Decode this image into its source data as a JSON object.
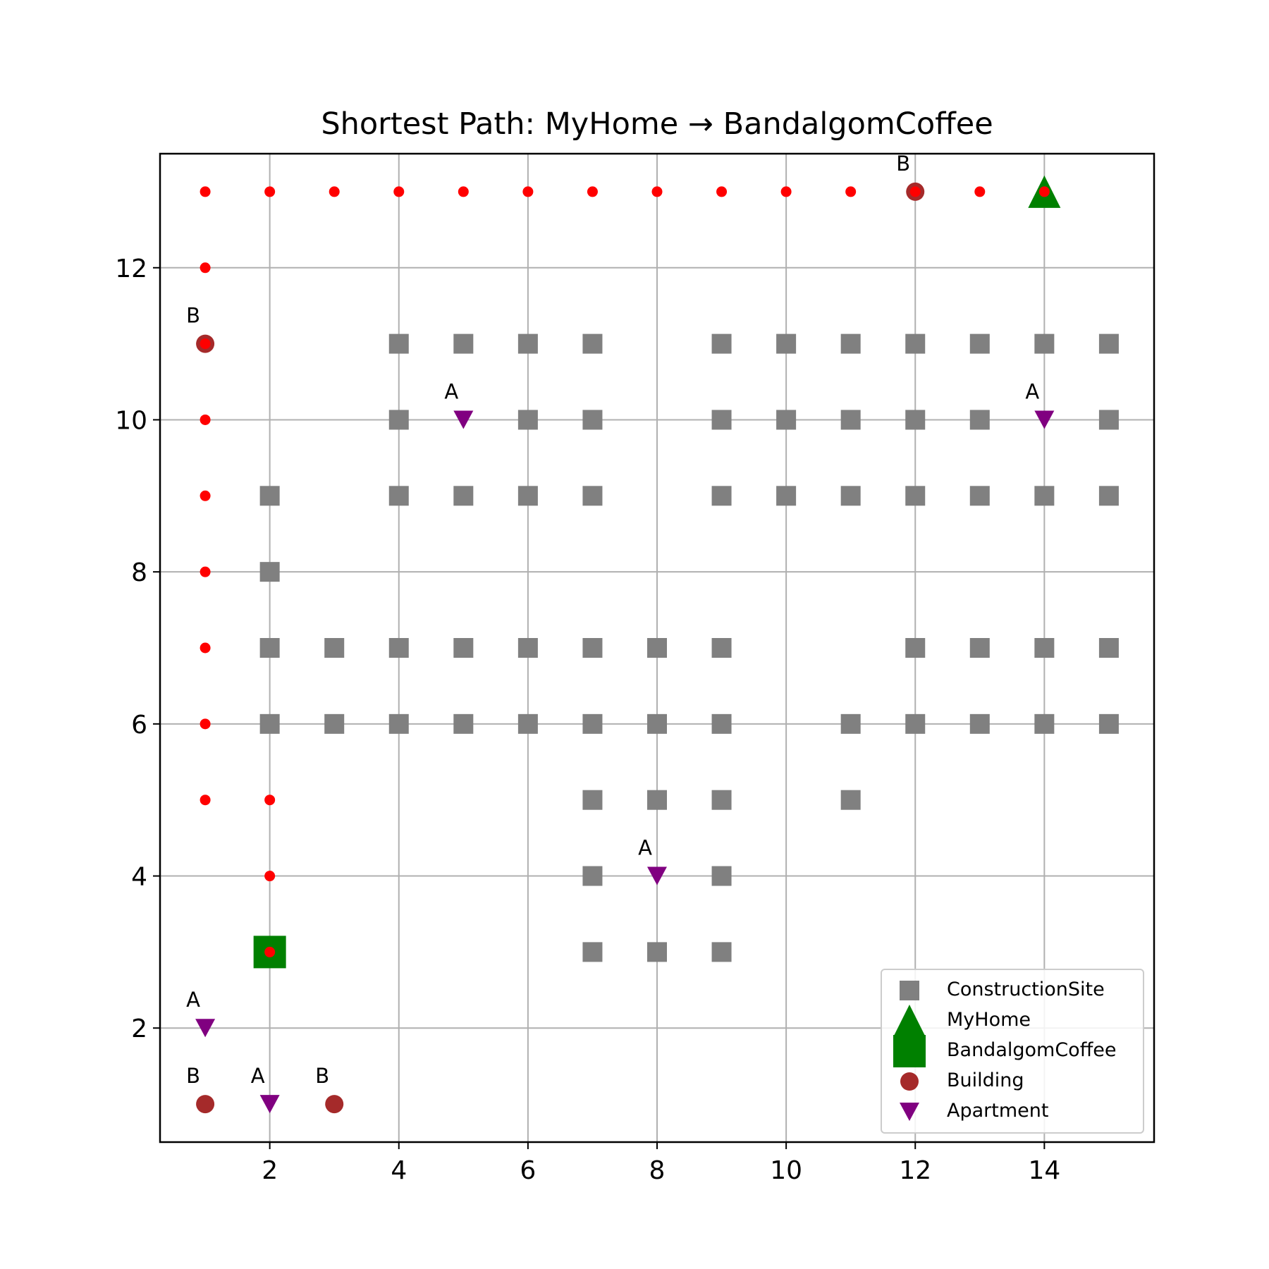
{
  "chart_data": {
    "type": "scatter",
    "title": "Shortest Path: MyHome → BandalgomCoffee",
    "xlabel": "",
    "ylabel": "",
    "xlim": [
      0.3,
      15.7
    ],
    "ylim": [
      0.5,
      13.5
    ],
    "xticks": [
      2,
      4,
      6,
      8,
      10,
      12,
      14
    ],
    "yticks": [
      2,
      4,
      6,
      8,
      10,
      12
    ],
    "grid": true,
    "legend_position": "lower-right",
    "series": [
      {
        "name": "ConstructionSite",
        "marker": "square",
        "color": "#808080",
        "points": [
          [
            4,
            11
          ],
          [
            5,
            11
          ],
          [
            6,
            11
          ],
          [
            7,
            11
          ],
          [
            9,
            11
          ],
          [
            10,
            11
          ],
          [
            11,
            11
          ],
          [
            12,
            11
          ],
          [
            13,
            11
          ],
          [
            14,
            11
          ],
          [
            15,
            11
          ],
          [
            4,
            10
          ],
          [
            6,
            10
          ],
          [
            7,
            10
          ],
          [
            9,
            10
          ],
          [
            10,
            10
          ],
          [
            11,
            10
          ],
          [
            12,
            10
          ],
          [
            13,
            10
          ],
          [
            15,
            10
          ],
          [
            2,
            9
          ],
          [
            4,
            9
          ],
          [
            5,
            9
          ],
          [
            6,
            9
          ],
          [
            7,
            9
          ],
          [
            9,
            9
          ],
          [
            10,
            9
          ],
          [
            11,
            9
          ],
          [
            12,
            9
          ],
          [
            13,
            9
          ],
          [
            14,
            9
          ],
          [
            15,
            9
          ],
          [
            2,
            8
          ],
          [
            2,
            7
          ],
          [
            3,
            7
          ],
          [
            4,
            7
          ],
          [
            5,
            7
          ],
          [
            6,
            7
          ],
          [
            7,
            7
          ],
          [
            8,
            7
          ],
          [
            9,
            7
          ],
          [
            12,
            7
          ],
          [
            13,
            7
          ],
          [
            14,
            7
          ],
          [
            15,
            7
          ],
          [
            2,
            6
          ],
          [
            3,
            6
          ],
          [
            4,
            6
          ],
          [
            5,
            6
          ],
          [
            6,
            6
          ],
          [
            7,
            6
          ],
          [
            8,
            6
          ],
          [
            9,
            6
          ],
          [
            11,
            6
          ],
          [
            12,
            6
          ],
          [
            13,
            6
          ],
          [
            14,
            6
          ],
          [
            15,
            6
          ],
          [
            7,
            5
          ],
          [
            8,
            5
          ],
          [
            9,
            5
          ],
          [
            11,
            5
          ],
          [
            7,
            4
          ],
          [
            9,
            4
          ],
          [
            7,
            3
          ],
          [
            8,
            3
          ],
          [
            9,
            3
          ]
        ]
      },
      {
        "name": "MyHome",
        "marker": "triangle-up",
        "color": "#008000",
        "points": [
          [
            14,
            13
          ]
        ]
      },
      {
        "name": "BandalgomCoffee",
        "marker": "square-large",
        "color": "#008000",
        "points": [
          [
            2,
            3
          ]
        ]
      },
      {
        "name": "Building",
        "marker": "circle",
        "color": "#a52a2a",
        "label": "B",
        "points": [
          [
            12,
            13
          ],
          [
            1,
            11
          ],
          [
            1,
            1
          ],
          [
            3,
            1
          ]
        ]
      },
      {
        "name": "Apartment",
        "marker": "triangle-down",
        "color": "#800080",
        "label": "A",
        "points": [
          [
            5,
            10
          ],
          [
            14,
            10
          ],
          [
            8,
            4
          ],
          [
            1,
            2
          ],
          [
            2,
            1
          ]
        ]
      }
    ],
    "path": {
      "color": "#ff0000",
      "points": [
        [
          14,
          13
        ],
        [
          13,
          13
        ],
        [
          12,
          13
        ],
        [
          11,
          13
        ],
        [
          10,
          13
        ],
        [
          9,
          13
        ],
        [
          8,
          13
        ],
        [
          7,
          13
        ],
        [
          6,
          13
        ],
        [
          5,
          13
        ],
        [
          4,
          13
        ],
        [
          3,
          13
        ],
        [
          2,
          13
        ],
        [
          1,
          13
        ],
        [
          1,
          12
        ],
        [
          1,
          11
        ],
        [
          1,
          10
        ],
        [
          1,
          9
        ],
        [
          1,
          8
        ],
        [
          1,
          7
        ],
        [
          1,
          6
        ],
        [
          1,
          5
        ],
        [
          2,
          5
        ],
        [
          2,
          4
        ],
        [
          2,
          3
        ]
      ]
    }
  }
}
